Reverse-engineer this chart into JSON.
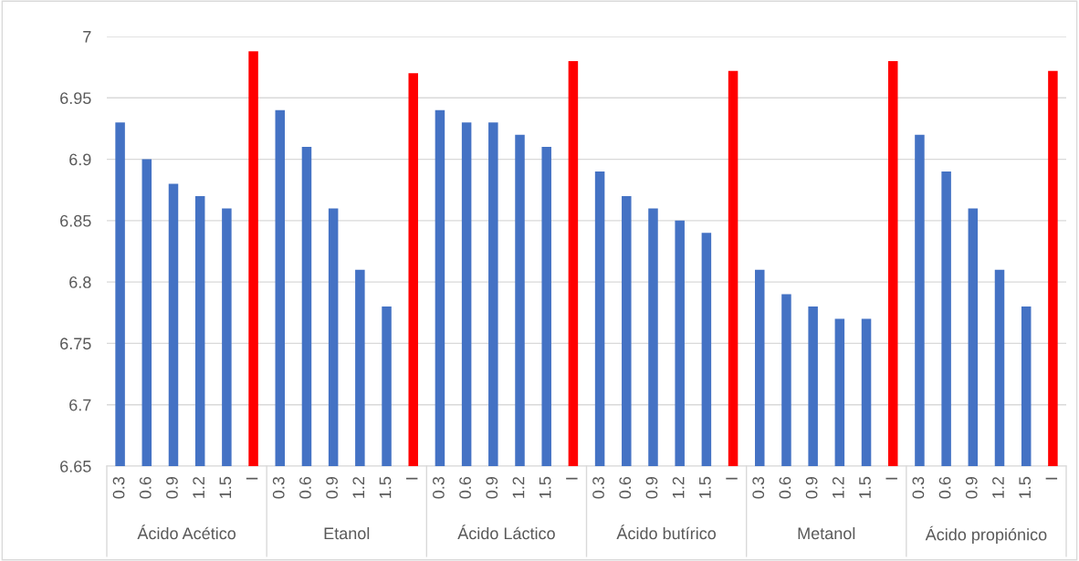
{
  "chart_data": {
    "type": "bar",
    "categories": [
      "0.3",
      "0.6",
      "0.9",
      "1.2",
      "1.5",
      "I",
      "0.3",
      "0.6",
      "0.9",
      "1.2",
      "1.5",
      "I",
      "0.3",
      "0.6",
      "0.9",
      "1.2",
      "1.5",
      "I",
      "0.3",
      "0.6",
      "0.9",
      "1.2",
      "1.5",
      "I",
      "0.3",
      "0.6",
      "0.9",
      "1.2",
      "1.5",
      "I",
      "0.3",
      "0.6",
      "0.9",
      "1.2",
      "1.5",
      "I"
    ],
    "values": [
      6.93,
      6.9,
      6.88,
      6.87,
      6.86,
      6.988,
      6.94,
      6.91,
      6.86,
      6.81,
      6.78,
      6.97,
      6.94,
      6.93,
      6.93,
      6.92,
      6.91,
      6.98,
      6.89,
      6.87,
      6.86,
      6.85,
      6.84,
      6.972,
      6.81,
      6.79,
      6.78,
      6.77,
      6.77,
      6.98,
      6.92,
      6.89,
      6.86,
      6.81,
      6.78,
      6.972
    ],
    "colors": [
      "#4472c4",
      "#4472c4",
      "#4472c4",
      "#4472c4",
      "#4472c4",
      "#ff0000",
      "#4472c4",
      "#4472c4",
      "#4472c4",
      "#4472c4",
      "#4472c4",
      "#ff0000",
      "#4472c4",
      "#4472c4",
      "#4472c4",
      "#4472c4",
      "#4472c4",
      "#ff0000",
      "#4472c4",
      "#4472c4",
      "#4472c4",
      "#4472c4",
      "#4472c4",
      "#ff0000",
      "#4472c4",
      "#4472c4",
      "#4472c4",
      "#4472c4",
      "#4472c4",
      "#ff0000",
      "#4472c4",
      "#4472c4",
      "#4472c4",
      "#4472c4",
      "#4472c4",
      "#ff0000"
    ],
    "annotations": [
      "Ácido Acético",
      "Etanol",
      "Ácido Láctico",
      "Ácido butírico",
      "Metanol",
      "Ácido propiónico"
    ],
    "ylim": [
      6.65,
      7
    ],
    "yticks": [
      6.65,
      6.7,
      6.75,
      6.8,
      6.85,
      6.9,
      6.95,
      7
    ],
    "grid": "y"
  }
}
